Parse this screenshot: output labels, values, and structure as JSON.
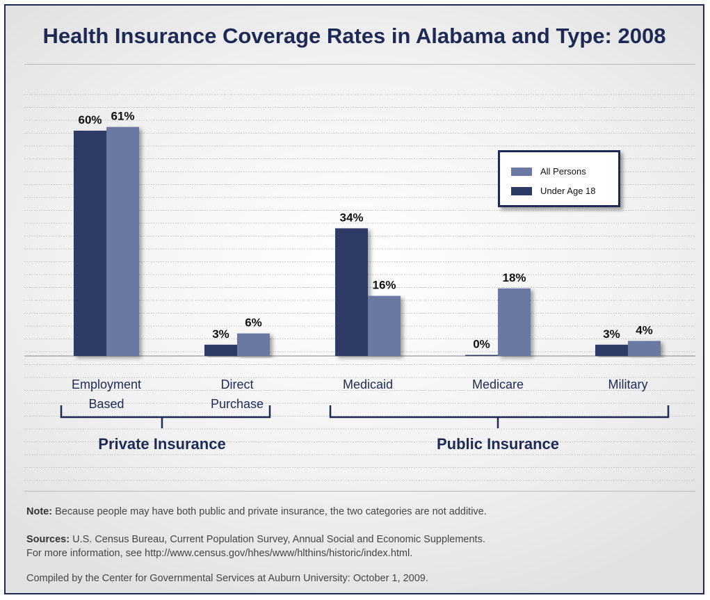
{
  "chart_data": {
    "type": "bar",
    "title": "Health Insurance Coverage Rates in Alabama and Type: 2008",
    "categories": [
      "Employment\nBased",
      "Direct\nPurchase",
      "Medicaid",
      "Medicare",
      "Military"
    ],
    "series": [
      {
        "name": "Under Age 18",
        "values": [
          60,
          3,
          34,
          0,
          3
        ],
        "labels": [
          "60%",
          "3%",
          "34%",
          "0%",
          "3%"
        ],
        "color": "#2e3a66"
      },
      {
        "name": "All Persons",
        "values": [
          61,
          6,
          16,
          18,
          4
        ],
        "labels": [
          "61%",
          "6%",
          "16%",
          "18%",
          "4%"
        ],
        "color": "#6b78a4"
      }
    ],
    "ylim": [
      0,
      70
    ],
    "grid": true,
    "legend_placement": "top-right",
    "legend": [
      "All Persons",
      "Under Age 18"
    ],
    "groups": [
      {
        "label": "Private Insurance",
        "categories": [
          0,
          1
        ]
      },
      {
        "label": "Public Insurance",
        "categories": [
          2,
          3,
          4
        ]
      }
    ]
  },
  "notes": {
    "note_label": "Note:",
    "note_text": " Because people may have both public and private insurance, the two categories are not additive.",
    "sources_label": "Sources:",
    "sources_text": " U.S. Census Bureau, Current Population Survey, Annual Social and Economic Supplements.",
    "more_info": "For more information, see http://www.census.gov/hhes/www/hlthins/historic/index.html.",
    "compiled": "Compiled by the Center for Governmental Services at Auburn University:  October 1, 2009."
  },
  "colors": {
    "navy": "#1c2a55",
    "under18": "#2e3a66",
    "all_persons": "#6b78a4"
  }
}
